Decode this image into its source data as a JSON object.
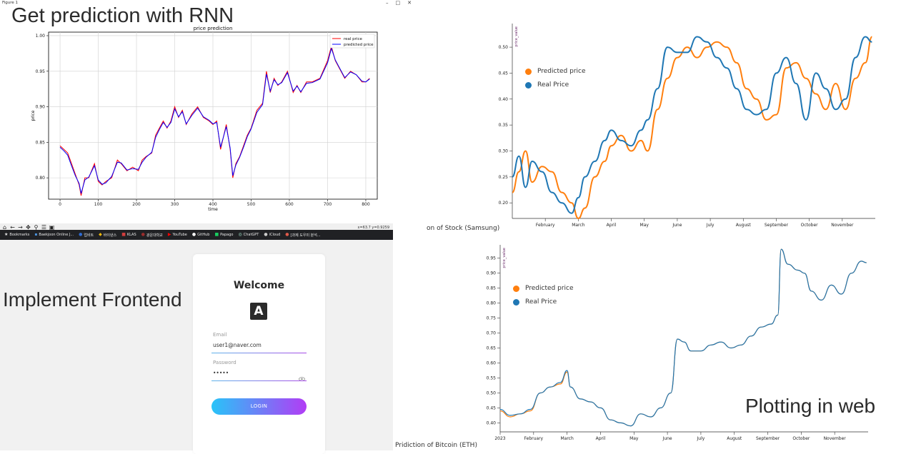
{
  "captions": {
    "rnn": "Get prediction with RNN",
    "frontend": "Implement Frontend",
    "web": "Plotting in web",
    "samsung_label": "on of Stock (Samsung)",
    "eth_label": "Pridiction of Bitcoin (ETH)"
  },
  "window": {
    "title": "Figure 1",
    "controls": [
      "–",
      "□",
      "✕"
    ],
    "coords_readout": "x=63.7 y=0.9259"
  },
  "toolbar_icons": [
    "home-icon",
    "back-icon",
    "forward-icon",
    "pan-icon",
    "zoom-icon",
    "configure-icon",
    "save-icon"
  ],
  "toolbar_glyphs": [
    "⌂",
    "←",
    "→",
    "✥",
    "⚲",
    "☰",
    "▣"
  ],
  "bookmarks": [
    {
      "label": "Bookmarks",
      "icon": "★",
      "color": "#e8e8e8"
    },
    {
      "label": "Baekjoon Online J...",
      "icon": "▪",
      "color": "#4a90d9"
    },
    {
      "label": "업비트",
      "icon": "●",
      "color": "#2e6bd3"
    },
    {
      "label": "바이낸스",
      "icon": "◆",
      "color": "#f0b90b"
    },
    {
      "label": "KLAS",
      "icon": "■",
      "color": "#d23d3d"
    },
    {
      "label": "광운대학교",
      "icon": "●",
      "color": "#9b2c2c"
    },
    {
      "label": "YouTube",
      "icon": "▶",
      "color": "#ff0000"
    },
    {
      "label": "GitHub",
      "icon": "●",
      "color": "#ffffff"
    },
    {
      "label": "Papago",
      "icon": "■",
      "color": "#19ce60"
    },
    {
      "label": "ChatGPT",
      "icon": "◎",
      "color": "#a0e0c8"
    },
    {
      "label": "iCloud",
      "icon": "●",
      "color": "#cccccc"
    },
    {
      "label": "[과제 도우미 분석...",
      "icon": "●",
      "color": "#e05a4a"
    }
  ],
  "login": {
    "title": "Welcome",
    "logo_letter": "A",
    "email_label": "Email",
    "email_value": "user1@naver.com",
    "password_label": "Password",
    "password_value": "•••••",
    "eye_icon": "eye-icon",
    "button_label": "LOGIN"
  },
  "colors": {
    "real_price_mpl": "#ff0000",
    "predicted_price_mpl": "#0000ff",
    "predicted_web": "#ff7f0e",
    "real_web": "#1f77b4",
    "login_gradient_start": "#28c4f8",
    "login_gradient_end": "#b23cf5"
  },
  "chart_data": [
    {
      "type": "line",
      "title": "price prediction",
      "xlabel": "time",
      "ylabel": "price",
      "xlim": [
        -30,
        830
      ],
      "ylim": [
        0.77,
        1.005
      ],
      "xticks": [
        0,
        100,
        200,
        300,
        400,
        500,
        600,
        700,
        800
      ],
      "yticks": [
        0.8,
        0.85,
        0.9,
        0.95,
        1.0
      ],
      "xtick_labels": [
        "0",
        "100",
        "200",
        "300",
        "400",
        "500",
        "600",
        "700",
        "800"
      ],
      "ytick_labels": [
        "0.80",
        "0.85",
        "0.90",
        "0.95",
        "1.00"
      ],
      "grid": true,
      "legend_position": "top-right",
      "series": [
        {
          "name": "real price",
          "color": "#ff0000",
          "x": [
            0,
            10,
            20,
            30,
            40,
            50,
            55,
            65,
            75,
            90,
            100,
            110,
            120,
            135,
            150,
            160,
            175,
            190,
            205,
            215,
            225,
            240,
            250,
            260,
            270,
            280,
            290,
            300,
            310,
            320,
            330,
            345,
            360,
            375,
            390,
            400,
            410,
            420,
            435,
            445,
            452,
            460,
            470,
            480,
            490,
            500,
            515,
            530,
            540,
            550,
            560,
            570,
            580,
            595,
            610,
            620,
            630,
            645,
            660,
            680,
            700,
            710,
            720,
            730,
            745,
            760,
            775,
            790,
            800,
            810
          ],
          "y": [
            0.845,
            0.84,
            0.835,
            0.82,
            0.805,
            0.79,
            0.775,
            0.8,
            0.8,
            0.82,
            0.795,
            0.79,
            0.795,
            0.8,
            0.825,
            0.82,
            0.81,
            0.815,
            0.81,
            0.825,
            0.83,
            0.835,
            0.86,
            0.87,
            0.88,
            0.87,
            0.88,
            0.9,
            0.885,
            0.895,
            0.875,
            0.89,
            0.9,
            0.885,
            0.88,
            0.875,
            0.88,
            0.84,
            0.875,
            0.84,
            0.8,
            0.82,
            0.83,
            0.845,
            0.86,
            0.87,
            0.895,
            0.905,
            0.95,
            0.92,
            0.94,
            0.93,
            0.935,
            0.95,
            0.92,
            0.93,
            0.92,
            0.935,
            0.935,
            0.94,
            0.965,
            0.985,
            0.965,
            0.955,
            0.94,
            0.95,
            0.945,
            0.935,
            0.935,
            0.94
          ]
        },
        {
          "name": "predicted price",
          "color": "#0000ff",
          "x": [
            0,
            10,
            20,
            30,
            40,
            50,
            55,
            65,
            75,
            90,
            100,
            110,
            120,
            135,
            150,
            160,
            175,
            190,
            205,
            215,
            225,
            240,
            250,
            260,
            270,
            280,
            290,
            300,
            310,
            320,
            330,
            345,
            360,
            375,
            390,
            400,
            410,
            420,
            435,
            445,
            452,
            460,
            470,
            480,
            490,
            500,
            515,
            530,
            540,
            550,
            560,
            570,
            580,
            595,
            610,
            620,
            630,
            645,
            660,
            680,
            700,
            710,
            720,
            730,
            745,
            760,
            775,
            790,
            800,
            810
          ],
          "y": [
            0.843,
            0.838,
            0.832,
            0.817,
            0.803,
            0.792,
            0.778,
            0.797,
            0.801,
            0.817,
            0.797,
            0.791,
            0.793,
            0.802,
            0.822,
            0.821,
            0.811,
            0.813,
            0.812,
            0.822,
            0.829,
            0.836,
            0.857,
            0.868,
            0.878,
            0.871,
            0.878,
            0.897,
            0.886,
            0.893,
            0.876,
            0.888,
            0.898,
            0.886,
            0.881,
            0.876,
            0.878,
            0.843,
            0.872,
            0.842,
            0.803,
            0.818,
            0.829,
            0.843,
            0.858,
            0.869,
            0.892,
            0.903,
            0.946,
            0.922,
            0.938,
            0.931,
            0.934,
            0.948,
            0.922,
            0.929,
            0.921,
            0.933,
            0.934,
            0.939,
            0.962,
            0.982,
            0.966,
            0.956,
            0.941,
            0.949,
            0.945,
            0.936,
            0.935,
            0.939
          ]
        }
      ]
    },
    {
      "type": "line",
      "title": "",
      "ylabel": "price_value",
      "xlabel": "",
      "ylim": [
        0.17,
        0.54
      ],
      "yticks": [
        0.2,
        0.25,
        0.3,
        0.35,
        0.4,
        0.45,
        0.5
      ],
      "ytick_labels": [
        "0.20",
        "0.25",
        "0.30",
        "0.35",
        "0.40",
        "0.45",
        "0.50"
      ],
      "xlim": [
        0,
        11
      ],
      "xticks": [
        1,
        2,
        3,
        4,
        5,
        6,
        7,
        8,
        9,
        10
      ],
      "xtick_labels": [
        "February",
        "March",
        "April",
        "May",
        "June",
        "July",
        "August",
        "September",
        "October",
        "November"
      ],
      "grid": false,
      "legend_position": "top-left",
      "series": [
        {
          "name": "Predicted price",
          "color": "#ff7f0e",
          "x": [
            0,
            0.2,
            0.4,
            0.6,
            0.9,
            1.2,
            1.5,
            1.8,
            2.0,
            2.2,
            2.5,
            2.8,
            3.0,
            3.3,
            3.6,
            3.9,
            4.1,
            4.4,
            4.7,
            5.0,
            5.3,
            5.6,
            5.9,
            6.2,
            6.5,
            6.8,
            7.1,
            7.4,
            7.7,
            8.0,
            8.3,
            8.6,
            8.9,
            9.2,
            9.5,
            9.8,
            10.1,
            10.4,
            10.7,
            10.9
          ],
          "y": [
            0.22,
            0.26,
            0.3,
            0.24,
            0.27,
            0.26,
            0.22,
            0.2,
            0.17,
            0.19,
            0.25,
            0.28,
            0.31,
            0.33,
            0.3,
            0.32,
            0.3,
            0.38,
            0.44,
            0.48,
            0.5,
            0.48,
            0.5,
            0.51,
            0.5,
            0.47,
            0.42,
            0.4,
            0.36,
            0.37,
            0.46,
            0.47,
            0.44,
            0.41,
            0.38,
            0.43,
            0.38,
            0.44,
            0.47,
            0.52
          ]
        },
        {
          "name": "Real Price",
          "color": "#1f77b4",
          "x": [
            0,
            0.2,
            0.4,
            0.6,
            0.9,
            1.2,
            1.5,
            1.8,
            2.0,
            2.2,
            2.5,
            2.8,
            3.0,
            3.3,
            3.6,
            3.9,
            4.1,
            4.4,
            4.7,
            5.0,
            5.3,
            5.6,
            5.9,
            6.2,
            6.5,
            6.8,
            7.1,
            7.4,
            7.7,
            8.0,
            8.3,
            8.6,
            8.9,
            9.2,
            9.5,
            9.8,
            10.1,
            10.4,
            10.7,
            10.9
          ],
          "y": [
            0.25,
            0.29,
            0.23,
            0.28,
            0.26,
            0.22,
            0.2,
            0.18,
            0.21,
            0.25,
            0.28,
            0.32,
            0.34,
            0.32,
            0.31,
            0.34,
            0.36,
            0.42,
            0.5,
            0.49,
            0.49,
            0.52,
            0.51,
            0.48,
            0.46,
            0.42,
            0.38,
            0.37,
            0.38,
            0.45,
            0.48,
            0.43,
            0.36,
            0.45,
            0.42,
            0.38,
            0.4,
            0.48,
            0.52,
            0.51
          ]
        }
      ]
    },
    {
      "type": "line",
      "title": "",
      "ylabel": "price_value",
      "xlabel": "",
      "ylim": [
        0.37,
        0.985
      ],
      "yticks": [
        0.4,
        0.45,
        0.5,
        0.55,
        0.6,
        0.65,
        0.7,
        0.75,
        0.8,
        0.85,
        0.9,
        0.95
      ],
      "ytick_labels": [
        "0.40",
        "0.45",
        "0.50",
        "0.55",
        "0.60",
        "0.65",
        "0.70",
        "0.75",
        "0.80",
        "0.85",
        "0.90",
        "0.95"
      ],
      "xlim": [
        0,
        11
      ],
      "xticks": [
        0,
        1,
        2,
        3,
        4,
        5,
        6,
        7,
        8,
        9,
        10
      ],
      "xtick_labels": [
        "2023",
        "February",
        "March",
        "April",
        "May",
        "June",
        "July",
        "August",
        "September",
        "October",
        "November"
      ],
      "grid": false,
      "legend_position": "top-left",
      "series": [
        {
          "name": "Predicted price",
          "color": "#ff7f0e",
          "x": [
            0,
            0.3,
            0.6,
            0.9,
            1.2,
            1.5,
            1.8,
            2.0,
            2.1,
            2.4,
            2.7,
            3.0,
            3.3,
            3.6,
            3.9,
            4.2,
            4.5,
            4.8,
            5.1,
            5.3,
            5.5,
            5.7,
            6.0,
            6.3,
            6.6,
            6.9,
            7.2,
            7.5,
            7.8,
            8.1,
            8.3,
            8.4,
            8.6,
            8.9,
            9.1,
            9.3,
            9.6,
            9.9,
            10.2,
            10.5,
            10.8,
            10.95
          ],
          "y": [
            0.44,
            0.42,
            0.43,
            0.44,
            0.5,
            0.52,
            0.53,
            0.57,
            0.52,
            0.48,
            0.47,
            0.45,
            0.41,
            0.4,
            0.39,
            0.43,
            0.42,
            0.45,
            0.5,
            0.68,
            0.67,
            0.64,
            0.64,
            0.66,
            0.67,
            0.65,
            0.66,
            0.69,
            0.72,
            0.73,
            0.76,
            0.98,
            0.93,
            0.91,
            0.9,
            0.84,
            0.81,
            0.86,
            0.83,
            0.9,
            0.94,
            0.935
          ]
        },
        {
          "name": "Real Price",
          "color": "#1f77b4",
          "x": [
            0,
            0.3,
            0.6,
            0.9,
            1.2,
            1.5,
            1.8,
            2.0,
            2.1,
            2.4,
            2.7,
            3.0,
            3.3,
            3.6,
            3.9,
            4.2,
            4.5,
            4.8,
            5.1,
            5.3,
            5.5,
            5.7,
            6.0,
            6.3,
            6.6,
            6.9,
            7.2,
            7.5,
            7.8,
            8.1,
            8.3,
            8.4,
            8.6,
            8.9,
            9.1,
            9.3,
            9.6,
            9.9,
            10.2,
            10.5,
            10.8,
            10.95
          ],
          "y": [
            0.445,
            0.425,
            0.43,
            0.445,
            0.5,
            0.52,
            0.535,
            0.575,
            0.52,
            0.48,
            0.47,
            0.45,
            0.41,
            0.4,
            0.39,
            0.43,
            0.42,
            0.45,
            0.5,
            0.68,
            0.67,
            0.64,
            0.64,
            0.66,
            0.67,
            0.65,
            0.66,
            0.69,
            0.72,
            0.73,
            0.76,
            0.98,
            0.93,
            0.91,
            0.9,
            0.84,
            0.81,
            0.86,
            0.83,
            0.9,
            0.94,
            0.935
          ]
        }
      ]
    }
  ]
}
